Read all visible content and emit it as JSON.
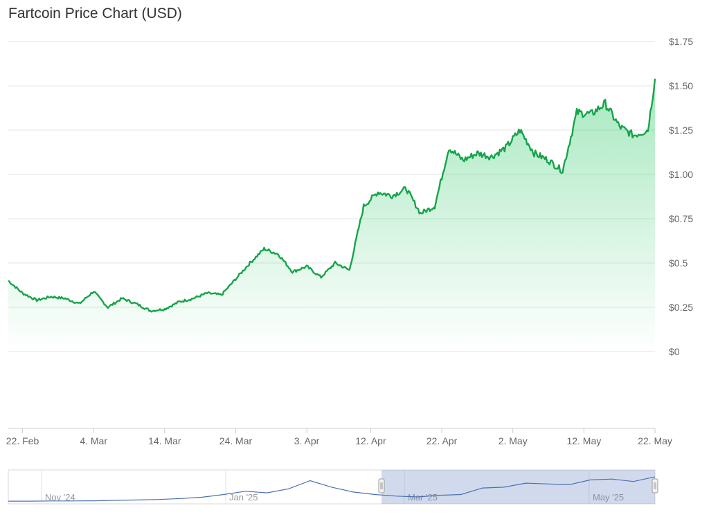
{
  "chart_data": [
    {
      "type": "area",
      "title": "Fartcoin Price Chart (USD)",
      "x_start": "2025-02-20",
      "x_end": "2025-05-22",
      "ylim": [
        0,
        1.75
      ],
      "y_ticks": [
        0,
        0.25,
        0.5,
        0.75,
        1.0,
        1.25,
        1.5,
        1.75
      ],
      "y_tick_labels": [
        "$0",
        "$0.25",
        "$0.5",
        "$0.75",
        "$1.00",
        "$1.25",
        "$1.50",
        "$1.75"
      ],
      "x_ticks": [
        "2025-02-22",
        "2025-03-04",
        "2025-03-14",
        "2025-03-24",
        "2025-04-03",
        "2025-04-12",
        "2025-04-22",
        "2025-05-02",
        "2025-05-12",
        "2025-05-22"
      ],
      "x_tick_labels": [
        "22. Feb",
        "4. Mar",
        "14. Mar",
        "24. Mar",
        "3. Apr",
        "12. Apr",
        "22. Apr",
        "2. May",
        "12. May",
        "22. May"
      ],
      "grid": true,
      "color": "#16a34a",
      "series": [
        {
          "x": [
            "2025-02-20",
            "2025-02-22",
            "2025-02-24",
            "2025-02-26",
            "2025-02-28",
            "2025-03-02",
            "2025-03-04",
            "2025-03-06",
            "2025-03-08",
            "2025-03-10",
            "2025-03-12",
            "2025-03-14",
            "2025-03-16",
            "2025-03-18",
            "2025-03-20",
            "2025-03-22",
            "2025-03-24",
            "2025-03-26",
            "2025-03-28",
            "2025-03-30",
            "2025-04-01",
            "2025-04-03",
            "2025-04-05",
            "2025-04-07",
            "2025-04-09",
            "2025-04-11",
            "2025-04-13",
            "2025-04-15",
            "2025-04-17",
            "2025-04-19",
            "2025-04-21",
            "2025-04-23",
            "2025-04-25",
            "2025-04-27",
            "2025-04-29",
            "2025-05-01",
            "2025-05-03",
            "2025-05-05",
            "2025-05-07",
            "2025-05-09",
            "2025-05-11",
            "2025-05-13",
            "2025-05-15",
            "2025-05-17",
            "2025-05-19",
            "2025-05-21",
            "2025-05-22"
          ],
          "y": [
            0.4,
            0.33,
            0.29,
            0.31,
            0.3,
            0.27,
            0.34,
            0.25,
            0.3,
            0.27,
            0.23,
            0.24,
            0.28,
            0.3,
            0.33,
            0.32,
            0.41,
            0.5,
            0.58,
            0.55,
            0.45,
            0.48,
            0.42,
            0.5,
            0.46,
            0.82,
            0.9,
            0.88,
            0.92,
            0.78,
            0.82,
            1.15,
            1.08,
            1.12,
            1.1,
            1.15,
            1.25,
            1.12,
            1.08,
            1.02,
            1.35,
            1.34,
            1.4,
            1.27,
            1.22,
            1.25,
            1.54
          ]
        }
      ]
    },
    {
      "type": "line",
      "x_tick_labels": [
        "Nov '24",
        "Jan '25",
        "Mar '25",
        "May '25"
      ],
      "selected_range": [
        "2025-02-20",
        "2025-05-22"
      ],
      "color": "#4a6fb3",
      "series": [
        {
          "y": [
            0.04,
            0.04,
            0.05,
            0.05,
            0.06,
            0.09,
            0.11,
            0.14,
            0.2,
            0.28,
            0.45,
            0.65,
            0.55,
            0.8,
            1.3,
            0.9,
            0.6,
            0.45,
            0.35,
            0.3,
            0.4,
            0.45,
            0.85,
            0.9,
            1.15,
            1.1,
            1.05,
            1.35,
            1.4,
            1.25,
            1.54
          ]
        }
      ]
    }
  ]
}
